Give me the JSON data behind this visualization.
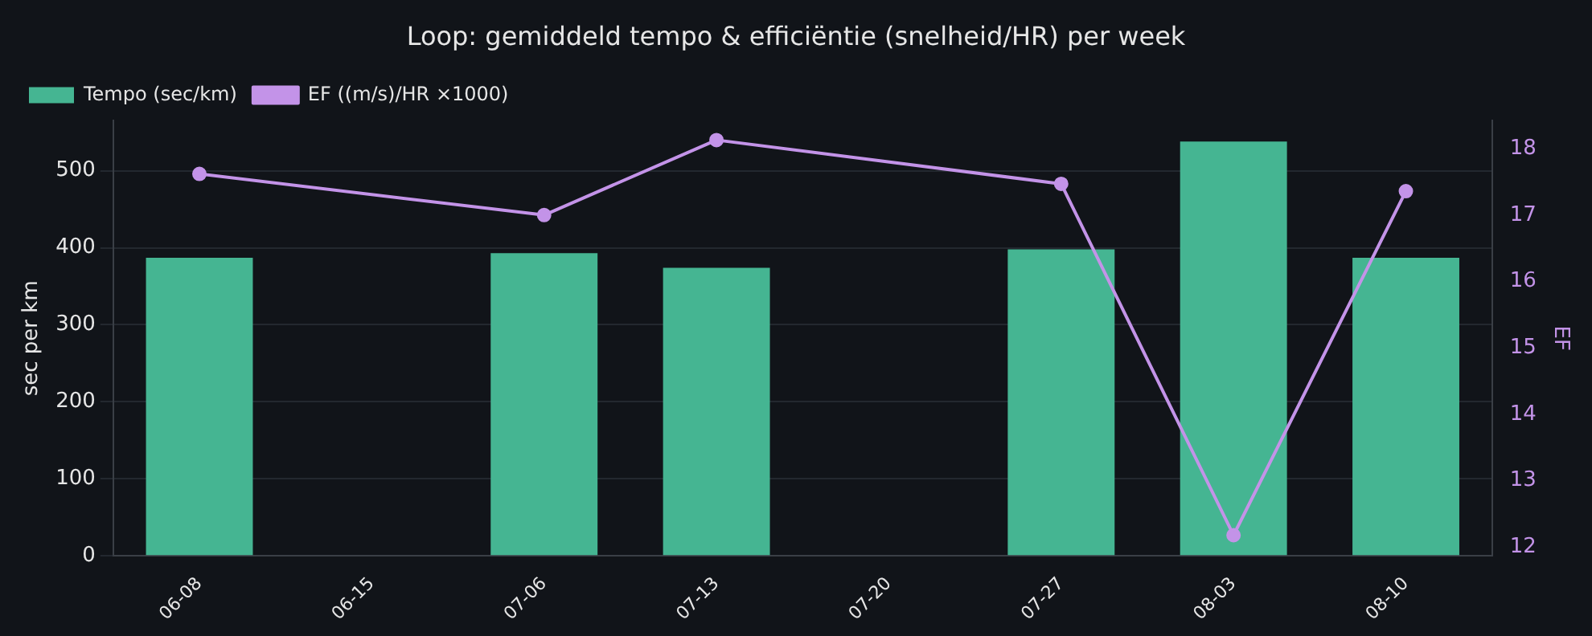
{
  "chart_data": {
    "type": "bar",
    "title": "Loop: gemiddeld tempo & efficiëntie (snelheid/HR) per week",
    "ylabel": "sec per km",
    "y2label": "EF",
    "categories": [
      "06-08",
      "06-15",
      "07-06",
      "07-13",
      "07-20",
      "07-27",
      "08-03",
      "08-10"
    ],
    "series": [
      {
        "name": "Tempo (sec/km)",
        "color": "#45b592",
        "values": [
          387,
          null,
          393,
          374,
          null,
          398,
          538,
          387
        ]
      },
      {
        "name": "EF ((m/s)/HR ×1000)",
        "type": "line",
        "axis": "y2",
        "color": "#c393e8",
        "marker": "circle",
        "values": [
          17.62,
          null,
          17.0,
          18.13,
          null,
          17.47,
          12.18,
          17.36
        ]
      }
    ],
    "ylim": [
      0,
      565
    ],
    "yticks": [
      0,
      100,
      200,
      300,
      400,
      500
    ],
    "y2lim": [
      11.87,
      18.42
    ],
    "y2ticks": [
      12,
      13,
      14,
      15,
      16,
      17,
      18
    ],
    "grid": "y",
    "legend": "top left"
  }
}
